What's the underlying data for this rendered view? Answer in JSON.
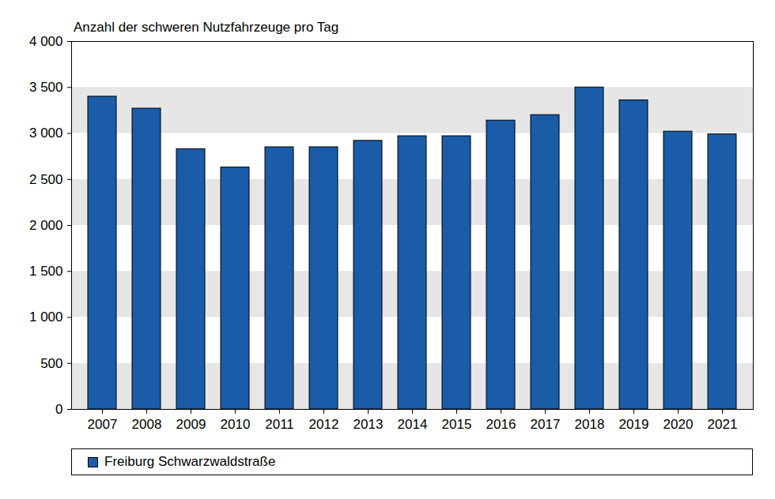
{
  "chart_data": {
    "type": "bar",
    "title": "Anzahl  der schweren Nutzfahrzeuge  pro Tag",
    "categories": [
      "2007",
      "2008",
      "2009",
      "2010",
      "2011",
      "2012",
      "2013",
      "2014",
      "2015",
      "2016",
      "2017",
      "2018",
      "2019",
      "2020",
      "2021"
    ],
    "series": [
      {
        "name": "Freiburg Schwarzwaldstraße",
        "color": "#1a5ca8",
        "values": [
          3400,
          3270,
          2830,
          2630,
          2850,
          2850,
          2920,
          2970,
          2970,
          3140,
          3200,
          3500,
          3360,
          3020,
          2990
        ]
      }
    ],
    "ylim": [
      0,
      4000
    ],
    "yticks": [
      0,
      500,
      {
        "value": 1000,
        "label": "1 000"
      },
      {
        "value": 1500,
        "label": "1 500"
      },
      {
        "value": 2000,
        "label": "2 000"
      },
      {
        "value": 2500,
        "label": "2 500"
      },
      {
        "value": 3000,
        "label": "3 000"
      },
      {
        "value": 3500,
        "label": "3 500"
      },
      {
        "value": 4000,
        "label": "4 000"
      }
    ],
    "grid": true,
    "legend": "bottom"
  }
}
